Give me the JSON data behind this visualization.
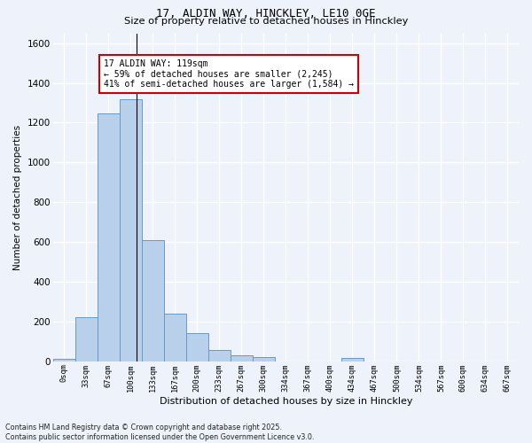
{
  "title1": "17, ALDIN WAY, HINCKLEY, LE10 0GE",
  "title2": "Size of property relative to detached houses in Hinckley",
  "xlabel": "Distribution of detached houses by size in Hinckley",
  "ylabel": "Number of detached properties",
  "bin_labels": [
    "0sqm",
    "33sqm",
    "67sqm",
    "100sqm",
    "133sqm",
    "167sqm",
    "200sqm",
    "233sqm",
    "267sqm",
    "300sqm",
    "334sqm",
    "367sqm",
    "400sqm",
    "434sqm",
    "467sqm",
    "500sqm",
    "534sqm",
    "567sqm",
    "600sqm",
    "634sqm",
    "667sqm"
  ],
  "bar_values": [
    10,
    220,
    1245,
    1320,
    610,
    240,
    140,
    55,
    28,
    22,
    0,
    0,
    0,
    18,
    0,
    0,
    0,
    0,
    0,
    0,
    0
  ],
  "bar_color": "#b8d0ea",
  "bar_edge_color": "#6699cc",
  "annotation_text": "17 ALDIN WAY: 119sqm\n← 59% of detached houses are smaller (2,245)\n41% of semi-detached houses are larger (1,584) →",
  "annotation_box_color": "#ffffff",
  "annotation_box_edge_color": "#cc0000",
  "vline_x": 3.26,
  "ylim": [
    0,
    1650
  ],
  "yticks": [
    0,
    200,
    400,
    600,
    800,
    1000,
    1200,
    1400,
    1600
  ],
  "background_color": "#eef2fb",
  "grid_color": "#ffffff",
  "footer_line1": "Contains HM Land Registry data © Crown copyright and database right 2025.",
  "footer_line2": "Contains public sector information licensed under the Open Government Licence v3.0."
}
